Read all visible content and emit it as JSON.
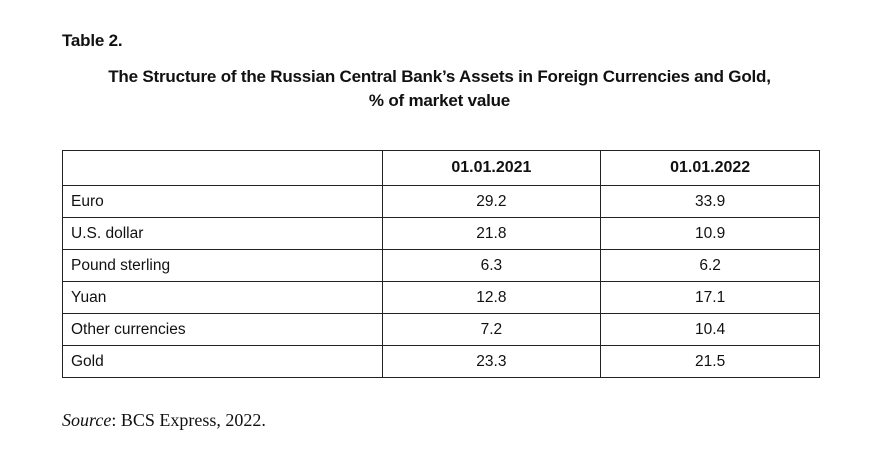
{
  "table_label": "Table 2.",
  "caption": {
    "line1": "The Structure of the Russian Central Bank’s Assets in Foreign Currencies and Gold,",
    "line2": "% of market value"
  },
  "table": {
    "columns": [
      "",
      "01.01.2021",
      "01.01.2022"
    ],
    "rows": [
      {
        "label": "Euro",
        "v2021": "29.2",
        "v2022": "33.9"
      },
      {
        "label": "U.S. dollar",
        "v2021": "21.8",
        "v2022": "10.9"
      },
      {
        "label": "Pound sterling",
        "v2021": "6.3",
        "v2022": "6.2"
      },
      {
        "label": "Yuan",
        "v2021": "12.8",
        "v2022": "17.1"
      },
      {
        "label": "Other currencies",
        "v2021": "7.2",
        "v2022": "10.4"
      },
      {
        "label": "Gold",
        "v2021": "23.3",
        "v2022": "21.5"
      }
    ]
  },
  "source": {
    "label": "Source",
    "text": ": BCS Express, 2022."
  },
  "chart_data": {
    "type": "table",
    "title": "The Structure of the Russian Central Bank’s Assets in Foreign Currencies and Gold, % of market value",
    "categories": [
      "Euro",
      "U.S. dollar",
      "Pound sterling",
      "Yuan",
      "Other currencies",
      "Gold"
    ],
    "series": [
      {
        "name": "01.01.2021",
        "values": [
          29.2,
          21.8,
          6.3,
          12.8,
          7.2,
          23.3
        ]
      },
      {
        "name": "01.01.2022",
        "values": [
          33.9,
          10.9,
          6.2,
          17.1,
          10.4,
          21.5
        ]
      }
    ]
  }
}
